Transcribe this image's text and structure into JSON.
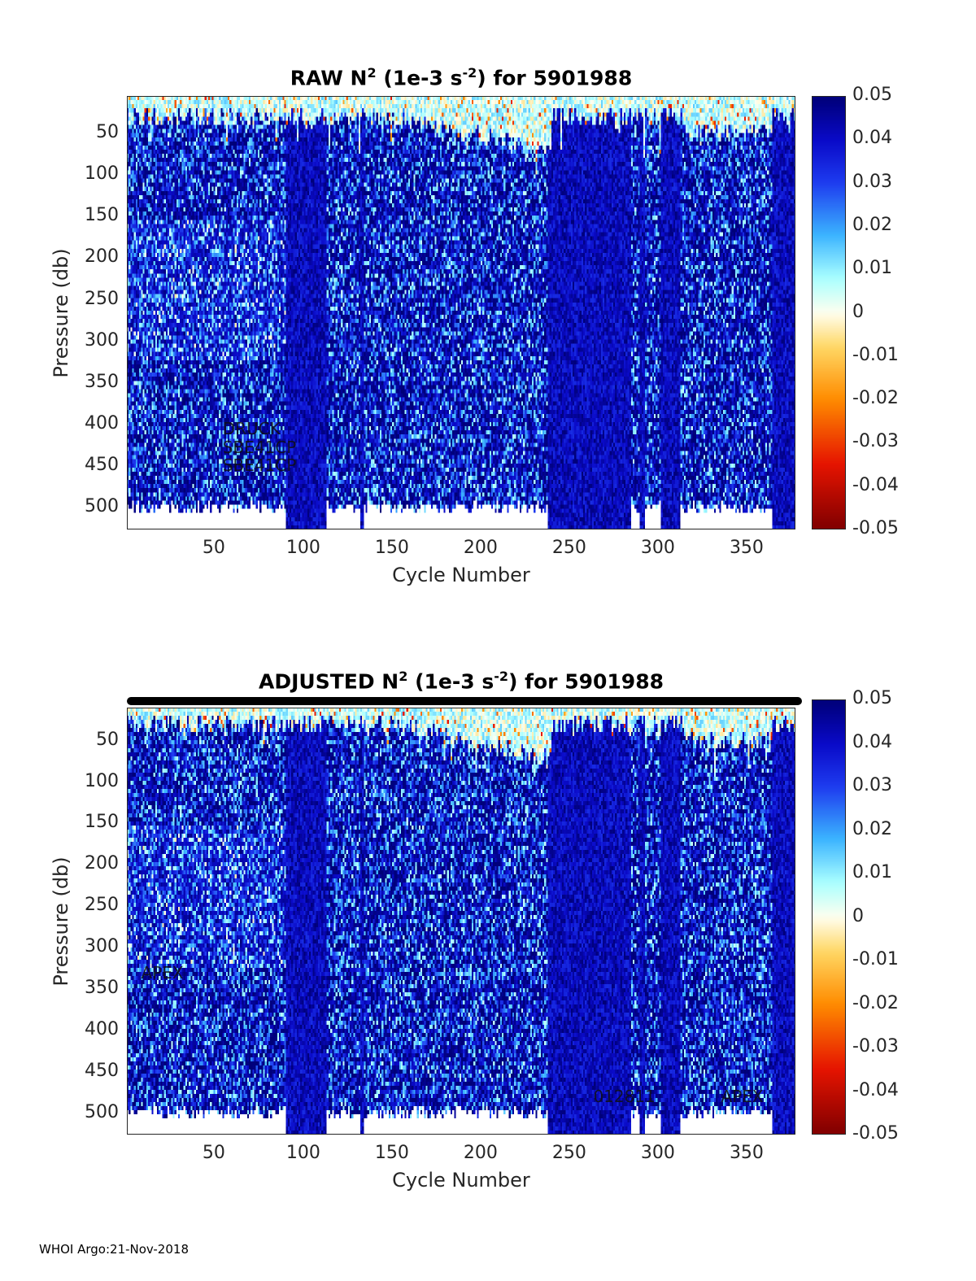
{
  "chart_data": [
    {
      "type": "heatmap",
      "title": {
        "prefix": "RAW N",
        "sup1": "2",
        "mid": " (1e-3 s",
        "sup2": "-2",
        "suffix": ") for 5901988"
      },
      "xlabel": "Cycle Number",
      "ylabel": "Pressure (db)",
      "xlim": [
        1,
        378
      ],
      "ylim": [
        5,
        526
      ],
      "y_reversed": true,
      "xticks": [
        50,
        100,
        150,
        200,
        250,
        300,
        350
      ],
      "yticks": [
        50,
        100,
        150,
        200,
        250,
        300,
        350,
        400,
        450,
        500
      ],
      "clim": [
        -0.05,
        0.05
      ],
      "colorbar_ticks": [
        "0.05",
        "0.04",
        "0.03",
        "0.02",
        "0.01",
        "0",
        "-0.01",
        "-0.02",
        "-0.03",
        "-0.04",
        "-0.05"
      ],
      "annotations": [
        {
          "text": "DRUCK",
          "x": 55,
          "y": 405
        },
        {
          "text": "SBE41CP",
          "x": 55,
          "y": 427
        },
        {
          "text": "SBE41CP",
          "x": 55,
          "y": 449
        }
      ],
      "markers": false,
      "seed": 7
    },
    {
      "type": "heatmap",
      "title": {
        "prefix": "ADJUSTED N",
        "sup1": "2",
        "mid": " (1e-3 s",
        "sup2": "-2",
        "suffix": ") for 5901988"
      },
      "xlabel": "Cycle Number",
      "ylabel": "Pressure (db)",
      "xlim": [
        1,
        378
      ],
      "ylim": [
        10,
        526
      ],
      "y_reversed": true,
      "xticks": [
        50,
        100,
        150,
        200,
        250,
        300,
        350
      ],
      "yticks": [
        50,
        100,
        150,
        200,
        250,
        300,
        350,
        400,
        450,
        500
      ],
      "clim": [
        -0.05,
        0.05
      ],
      "colorbar_ticks": [
        "0.05",
        "0.04",
        "0.03",
        "0.02",
        "0.01",
        "0",
        "-0.01",
        "-0.02",
        "-0.03",
        "-0.04",
        "-0.05"
      ],
      "annotations": [
        {
          "text": "APEX",
          "x": 9,
          "y": 330
        },
        {
          "text": "012811",
          "x": 264,
          "y": 480
        },
        {
          "text": "APEX",
          "x": 336,
          "y": 480
        }
      ],
      "markers": true,
      "seed": 11
    }
  ],
  "footer": "WHOI Argo:21-Nov-2018"
}
